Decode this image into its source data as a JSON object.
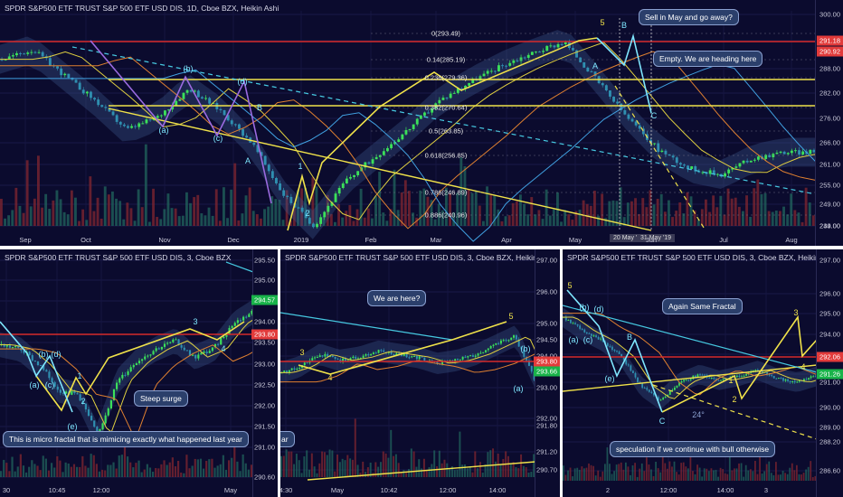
{
  "chart_data": [
    {
      "type": "candlestick",
      "title": "SPDR S&P500 ETF TRUST S&P 500 ETF USD DIS, 1D, Cboe BZX, Heikin Ashi",
      "x_ticks": [
        "Sep",
        "Oct",
        "Nov",
        "Dec",
        "2019",
        "Feb",
        "Mar",
        "Apr",
        "May",
        "Jun",
        "Jul",
        "Aug"
      ],
      "y_ticks": [
        300.0,
        294.0,
        288.0,
        282.0,
        276.0,
        266.0,
        261.0,
        255.0,
        249.0,
        244.0,
        239.0
      ],
      "ylim": [
        236,
        302
      ],
      "price_labels": [
        {
          "value": "291.18",
          "color": "#e23b3b"
        },
        {
          "value": "290.92",
          "color": "#e23b3b"
        }
      ],
      "close_series": [
        {
          "x": "Sep",
          "y": 289
        },
        {
          "x": "Oct",
          "y": 290.5
        },
        {
          "x": "Oct",
          "y": 275
        },
        {
          "x": "Nov",
          "y": 265
        },
        {
          "x": "Nov",
          "y": 278
        },
        {
          "x": "Dec",
          "y": 274
        },
        {
          "x": "Dec",
          "y": 259
        },
        {
          "x": "2019",
          "y": 237
        },
        {
          "x": "2019",
          "y": 252
        },
        {
          "x": "Feb",
          "y": 266
        },
        {
          "x": "Mar",
          "y": 278
        },
        {
          "x": "Apr",
          "y": 285
        },
        {
          "x": "May",
          "y": 293.5
        },
        {
          "x": "May",
          "y": 279
        },
        {
          "x": "Jun",
          "y": 272
        },
        {
          "x": "Jun",
          "y": 255
        },
        {
          "x": "Jul",
          "y": 252
        },
        {
          "x": "Jul",
          "y": 258
        },
        {
          "x": "Aug",
          "y": 259
        }
      ],
      "fib_levels": [
        {
          "label": "0(293.49)",
          "value": 293.49
        },
        {
          "label": "0.14(285.19)",
          "value": 285.19
        },
        {
          "label": "0.236(279.36)",
          "value": 279.36
        },
        {
          "label": "0.382(270.64)",
          "value": 270.64
        },
        {
          "label": "0.5(263.85)",
          "value": 263.85
        },
        {
          "label": "0.618(256.85)",
          "value": 256.85
        },
        {
          "label": "0.786(246.89)",
          "value": 246.89
        },
        {
          "label": "0.886(240.96)",
          "value": 240.96
        }
      ],
      "horizontal_levels": [
        {
          "value": 291.5,
          "color": "#d42a2a"
        },
        {
          "value": 279.5,
          "color": "#f0e24a"
        },
        {
          "value": 271.5,
          "color": "#f0e24a"
        }
      ],
      "wave_labels": [
        "(a)",
        "(b)",
        "(c)",
        "(d)",
        "B",
        "A",
        "1",
        "2",
        "5",
        "A",
        "B",
        "C"
      ],
      "callouts": [
        "Sell in May and go away?",
        "Empty. We are heading here"
      ],
      "date_tags": [
        "20 May '19",
        "31 May '19"
      ]
    },
    {
      "type": "candlestick",
      "title": "SPDR S&P500 ETF TRUST S&P 500 ETF USD DIS, 3, Cboe BZX",
      "x_ticks": [
        "30",
        "10:45",
        "12:00",
        "May"
      ],
      "y_ticks": [
        295.5,
        295.0,
        294.5,
        294.0,
        293.5,
        293.0,
        292.5,
        292.0,
        291.5,
        291.0,
        290.6
      ],
      "ylim": [
        290.5,
        295.7
      ],
      "price_labels": [
        {
          "value": "294.57",
          "color": "#19b34a"
        },
        {
          "value": "293.80",
          "color": "#e23b3b"
        }
      ],
      "wave_labels": [
        "(a)",
        "(c)",
        "(b)",
        "(d)",
        "(e)",
        "1",
        "2",
        "3",
        "4"
      ],
      "callouts": [
        "Steep surge",
        "This is micro fractal that is mimicing exactly what happened last year"
      ]
    },
    {
      "type": "candlestick",
      "title": "SPDR S&P500 ETF TRUST S&P 500 ETF USD DIS, 3, Cboe BZX, Heikin Ashi",
      "x_ticks": [
        "4:30",
        "May",
        "10:42",
        "12:00",
        "14:00"
      ],
      "y_ticks": [
        297.0,
        296.0,
        295.0,
        294.5,
        294.0,
        293.0,
        292.0,
        291.8,
        291.2,
        290.7
      ],
      "ylim": [
        290.3,
        297.3
      ],
      "price_labels": [
        {
          "value": "293.80",
          "color": "#e23b3b"
        },
        {
          "value": "293.66",
          "color": "#19b34a"
        }
      ],
      "wave_labels": [
        "3",
        "4",
        "5",
        "(b)",
        "(a)"
      ],
      "callouts": [
        "We are here?",
        "ar"
      ]
    },
    {
      "type": "candlestick",
      "title": "SPDR S&P500 ETF TRUST S&P 500 ETF USD DIS, 3, Cboe BZX, Heikin Ashi",
      "x_ticks": [
        "2",
        "12:00",
        "14:00",
        "3"
      ],
      "y_ticks": [
        297.0,
        296.0,
        295.0,
        294.0,
        293.0,
        292.0,
        291.0,
        290.0,
        289.0,
        288.2,
        286.6
      ],
      "ylim": [
        286.2,
        297.3
      ],
      "price_labels": [
        {
          "value": "292.06",
          "color": "#e23b3b"
        },
        {
          "value": "291.26",
          "color": "#19b34a"
        }
      ],
      "wave_labels": [
        "5",
        "(b)",
        "(d)",
        "(a)",
        "(c)",
        "B",
        "(e)",
        "C",
        "24°",
        "1",
        "2",
        "3",
        "4"
      ],
      "callouts": [
        "Again Same Fractal",
        "speculation if we continue with bull otherwise"
      ]
    }
  ]
}
